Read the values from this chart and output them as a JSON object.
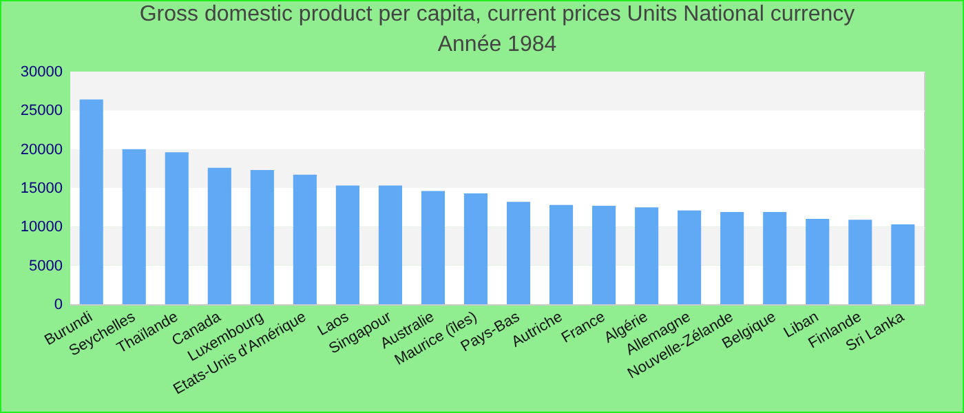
{
  "chart_data": {
    "type": "bar",
    "title": "Gross domestic product per capita, current prices Units National currency",
    "subtitle": "Année 1984",
    "categories": [
      "Burundi",
      "Seychelles",
      "Thaïlande",
      "Canada",
      "Luxembourg",
      "Etats-Unis d'Amérique",
      "Laos",
      "Singapour",
      "Australie",
      "Maurice (îles)",
      "Pays-Bas",
      "Autriche",
      "France",
      "Algérie",
      "Allemagne",
      "Nouvelle-Zélande",
      "Belgique",
      "Liban",
      "Finlande",
      "Sri Lanka"
    ],
    "values": [
      26400,
      20000,
      19600,
      17600,
      17300,
      16700,
      15300,
      15300,
      14600,
      14300,
      13200,
      12800,
      12700,
      12500,
      12100,
      11900,
      11900,
      11000,
      10900,
      10300
    ],
    "color": "#61a8f5",
    "ylim": [
      0,
      30000
    ],
    "yticks": [
      0,
      5000,
      10000,
      15000,
      20000,
      25000,
      30000
    ],
    "grid": true
  }
}
